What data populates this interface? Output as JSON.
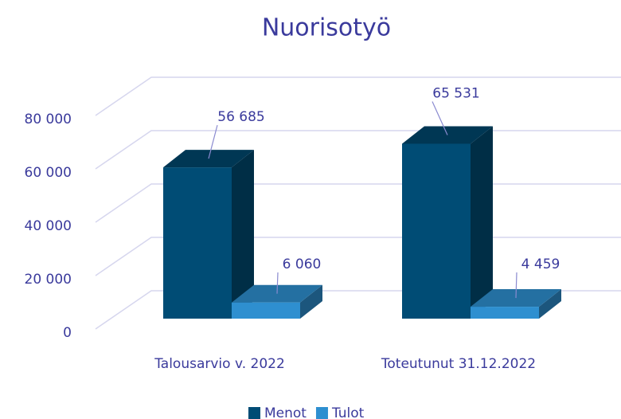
{
  "chart_data": {
    "type": "bar3d",
    "title": "Nuorisotyö",
    "categories": [
      "Talousarvio v. 2022",
      "Toteutunut 31.12.2022"
    ],
    "series": [
      {
        "name": "Menot",
        "color": "#004c75",
        "values": [
          56685,
          65531
        ],
        "value_labels": [
          "56 685",
          "65 531"
        ]
      },
      {
        "name": "Tulot",
        "color": "#2e8fd0",
        "values": [
          6060,
          4459
        ],
        "value_labels": [
          "6 060",
          "4 459"
        ]
      }
    ],
    "ylim": [
      0,
      80000
    ],
    "yticks": [
      0,
      {
        "value": 20000,
        "label": "20 000"
      },
      {
        "value": 40000,
        "label": "40 000"
      },
      {
        "value": 60000,
        "label": "60 000"
      },
      {
        "value": 80000,
        "label": "80 000"
      }
    ],
    "grid": true,
    "legend": "bottom"
  }
}
